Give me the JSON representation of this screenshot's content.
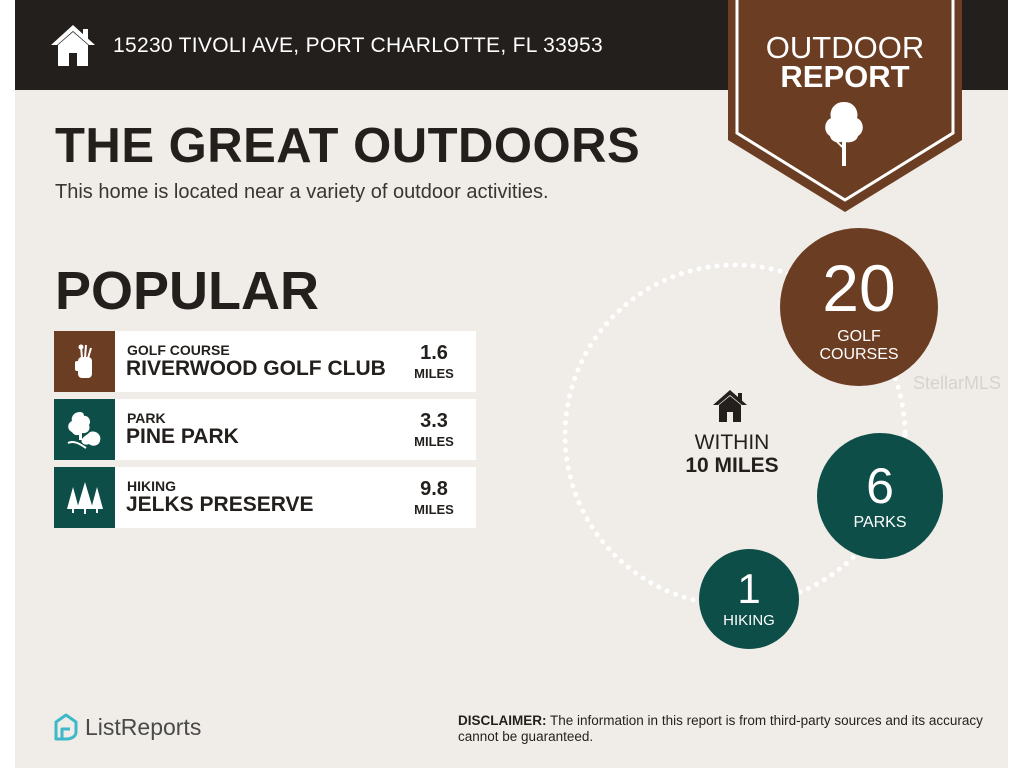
{
  "header": {
    "address": "15230 TIVOLI AVE, PORT CHARLOTTE, FL 33953",
    "icon": "house-icon"
  },
  "badge": {
    "line1": "OUTDOOR",
    "line2": "REPORT",
    "icon": "tree-icon"
  },
  "main": {
    "title": "THE GREAT OUTDOORS",
    "subtitle": "This home is located near a variety of outdoor activities."
  },
  "popular": {
    "heading": "POPULAR",
    "items": [
      {
        "category": "GOLF COURSE",
        "name": "RIVERWOOD GOLF CLUB",
        "distance": "1.6",
        "unit": "MILES",
        "icon": "golf-bag-icon",
        "color": "#6b3d22"
      },
      {
        "category": "PARK",
        "name": "PINE PARK",
        "distance": "3.3",
        "unit": "MILES",
        "icon": "park-trees-icon",
        "color": "#0e4e48"
      },
      {
        "category": "HIKING",
        "name": "JELKS PRESERVE",
        "distance": "9.8",
        "unit": "MILES",
        "icon": "pine-trees-icon",
        "color": "#0e4e48"
      }
    ]
  },
  "summary": {
    "within_line1": "WITHIN",
    "within_line2": "10 MILES",
    "icon": "house-icon",
    "golf": {
      "count": "20",
      "label1": "GOLF",
      "label2": "COURSES",
      "color": "#6b3d22"
    },
    "parks": {
      "count": "6",
      "label": "PARKS",
      "color": "#0e4e48"
    },
    "hiking": {
      "count": "1",
      "label": "HIKING",
      "color": "#0e4e48"
    }
  },
  "watermark": "StellarMLS",
  "footer": {
    "brand": "ListReports",
    "brand_icon": "listreports-logo-icon",
    "disclaimer_label": "DISCLAIMER:",
    "disclaimer_text": "The information in this report is from third-party sources and its accuracy cannot be guaranteed."
  },
  "colors": {
    "brown": "#6b3d22",
    "teal": "#0e4e48",
    "dark": "#231f1c",
    "background": "#f0ece8"
  }
}
